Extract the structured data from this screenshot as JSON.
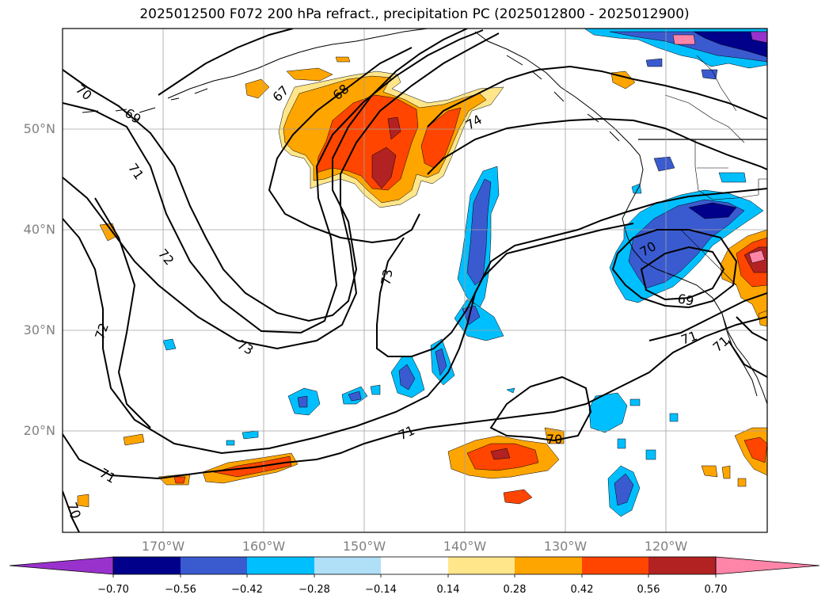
{
  "title": "2025012500 F072 200 hPa refract., precipitation PC (2025012800 - 2025012900)",
  "map": {
    "lat_labels": [
      "50°N",
      "40°N",
      "30°N",
      "20°N"
    ],
    "lon_labels": [
      "170°W",
      "160°W",
      "150°W",
      "140°W",
      "130°W",
      "120°W"
    ],
    "contour_labels": [
      "70",
      "69",
      "71",
      "72",
      "72",
      "73",
      "71",
      "71",
      "70",
      "67",
      "68",
      "74",
      "73",
      "70",
      "69",
      "71",
      "71",
      "70"
    ],
    "grid_color": "#a0a0a0",
    "land_outline_color": "#000000"
  },
  "colorbar": {
    "ticks": [
      "−0.70",
      "−0.56",
      "−0.42",
      "−0.28",
      "−0.14",
      "0.14",
      "0.28",
      "0.42",
      "0.56",
      "0.70"
    ],
    "colors": [
      "#9932cc",
      "#00008b",
      "#3a5bd0",
      "#00bfff",
      "#b0e0f8",
      "#ffffff",
      "#ffe68a",
      "#ffa500",
      "#ff4500",
      "#b22222",
      "#ff85a8"
    ]
  }
}
